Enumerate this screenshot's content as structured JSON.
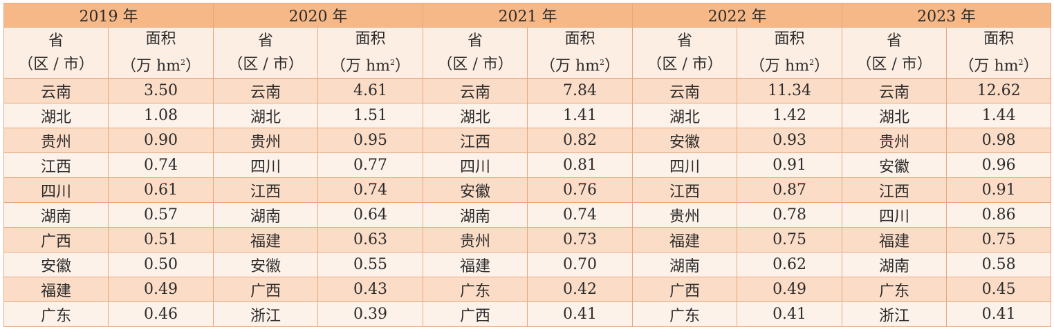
{
  "years": [
    "2019 年",
    "2020 年",
    "2021 年",
    "2022 年",
    "2023 年"
  ],
  "header": {
    "province_line1": "省",
    "province_line2": "（区 / 市）",
    "area_line1": "面积",
    "area_line2_pre": "（万 hm",
    "area_sup": "2",
    "area_line2_post": "）"
  },
  "rows": [
    [
      [
        "云南",
        "3.50"
      ],
      [
        "云南",
        "4.61"
      ],
      [
        "云南",
        "7.84"
      ],
      [
        "云南",
        "11.34"
      ],
      [
        "云南",
        "12.62"
      ]
    ],
    [
      [
        "湖北",
        "1.08"
      ],
      [
        "湖北",
        "1.51"
      ],
      [
        "湖北",
        "1.41"
      ],
      [
        "湖北",
        "1.42"
      ],
      [
        "湖北",
        "1.44"
      ]
    ],
    [
      [
        "贵州",
        "0.90"
      ],
      [
        "贵州",
        "0.95"
      ],
      [
        "江西",
        "0.82"
      ],
      [
        "安徽",
        "0.93"
      ],
      [
        "贵州",
        "0.98"
      ]
    ],
    [
      [
        "江西",
        "0.74"
      ],
      [
        "四川",
        "0.77"
      ],
      [
        "四川",
        "0.81"
      ],
      [
        "四川",
        "0.91"
      ],
      [
        "安徽",
        "0.96"
      ]
    ],
    [
      [
        "四川",
        "0.61"
      ],
      [
        "江西",
        "0.74"
      ],
      [
        "安徽",
        "0.76"
      ],
      [
        "江西",
        "0.87"
      ],
      [
        "江西",
        "0.91"
      ]
    ],
    [
      [
        "湖南",
        "0.57"
      ],
      [
        "湖南",
        "0.64"
      ],
      [
        "湖南",
        "0.74"
      ],
      [
        "贵州",
        "0.78"
      ],
      [
        "四川",
        "0.86"
      ]
    ],
    [
      [
        "广西",
        "0.51"
      ],
      [
        "福建",
        "0.63"
      ],
      [
        "贵州",
        "0.73"
      ],
      [
        "福建",
        "0.75"
      ],
      [
        "福建",
        "0.75"
      ]
    ],
    [
      [
        "安徽",
        "0.50"
      ],
      [
        "安徽",
        "0.55"
      ],
      [
        "福建",
        "0.70"
      ],
      [
        "湖南",
        "0.62"
      ],
      [
        "湖南",
        "0.58"
      ]
    ],
    [
      [
        "福建",
        "0.49"
      ],
      [
        "广西",
        "0.43"
      ],
      [
        "广东",
        "0.42"
      ],
      [
        "广西",
        "0.49"
      ],
      [
        "广东",
        "0.45"
      ]
    ],
    [
      [
        "广东",
        "0.46"
      ],
      [
        "浙江",
        "0.39"
      ],
      [
        "广西",
        "0.41"
      ],
      [
        "广东",
        "0.41"
      ],
      [
        "浙江",
        "0.41"
      ]
    ]
  ]
}
